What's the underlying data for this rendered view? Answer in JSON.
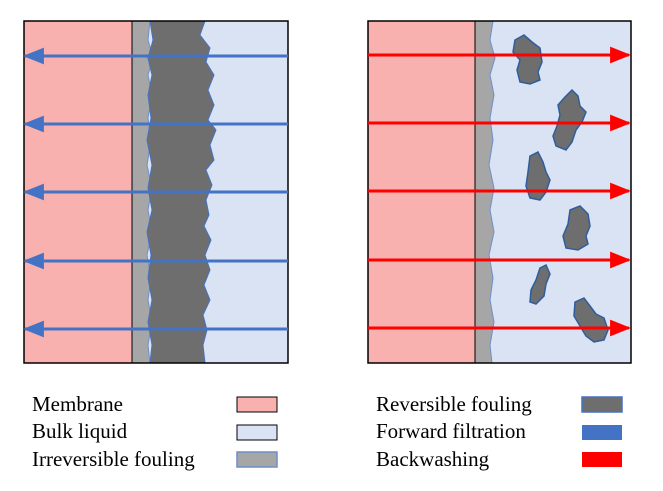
{
  "colors": {
    "membrane": "#f8b1ae",
    "bulk_liquid": "#dae3f3",
    "irreversible_fouling": "#a6a6a6",
    "reversible_fouling": "#6e6e6e",
    "forward_filtration": "#4472c4",
    "backwashing": "#ff0000",
    "outline": "#000000"
  },
  "panels": [
    {
      "id": "forward-filtration-panel",
      "arrow_direction": "left",
      "arrow_count": 5
    },
    {
      "id": "backwashing-panel",
      "arrow_direction": "right",
      "arrow_count": 5
    }
  ],
  "legend": {
    "left": [
      {
        "label": "Membrane",
        "swatch": "membrane"
      },
      {
        "label": "Bulk liquid",
        "swatch": "bulk_liquid"
      },
      {
        "label": "Irreversible fouling",
        "swatch": "irreversible_fouling"
      }
    ],
    "right": [
      {
        "label": "Reversible fouling",
        "swatch": "reversible_fouling"
      },
      {
        "label": "Forward filtration",
        "swatch": "forward_filtration"
      },
      {
        "label": "Backwashing",
        "swatch": "backwashing"
      }
    ]
  }
}
